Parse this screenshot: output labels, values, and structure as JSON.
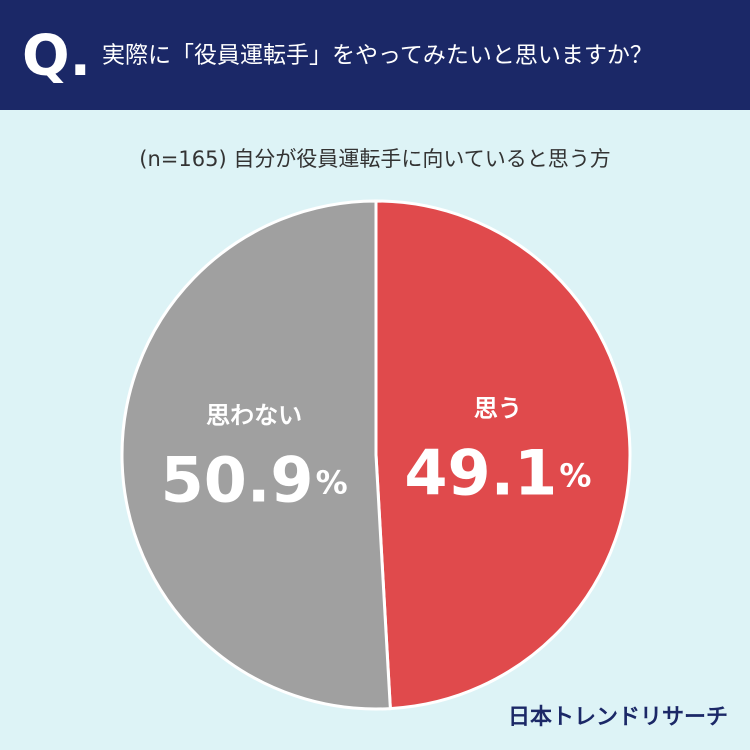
{
  "header": {
    "mark": "Q.",
    "question": "実際に「役員運転手」をやってみたいと思いますか？"
  },
  "chart_data": {
    "type": "pie",
    "subtitle": "(n=165) 自分が役員運転手に向いていると思う方",
    "categories": [
      "思う",
      "思わない"
    ],
    "values": [
      49.1,
      50.9
    ],
    "unit": "%",
    "colors": [
      "#e04a4c",
      "#a0a0a0"
    ]
  },
  "footer": {
    "brand": "日本トレンドリサーチ"
  }
}
